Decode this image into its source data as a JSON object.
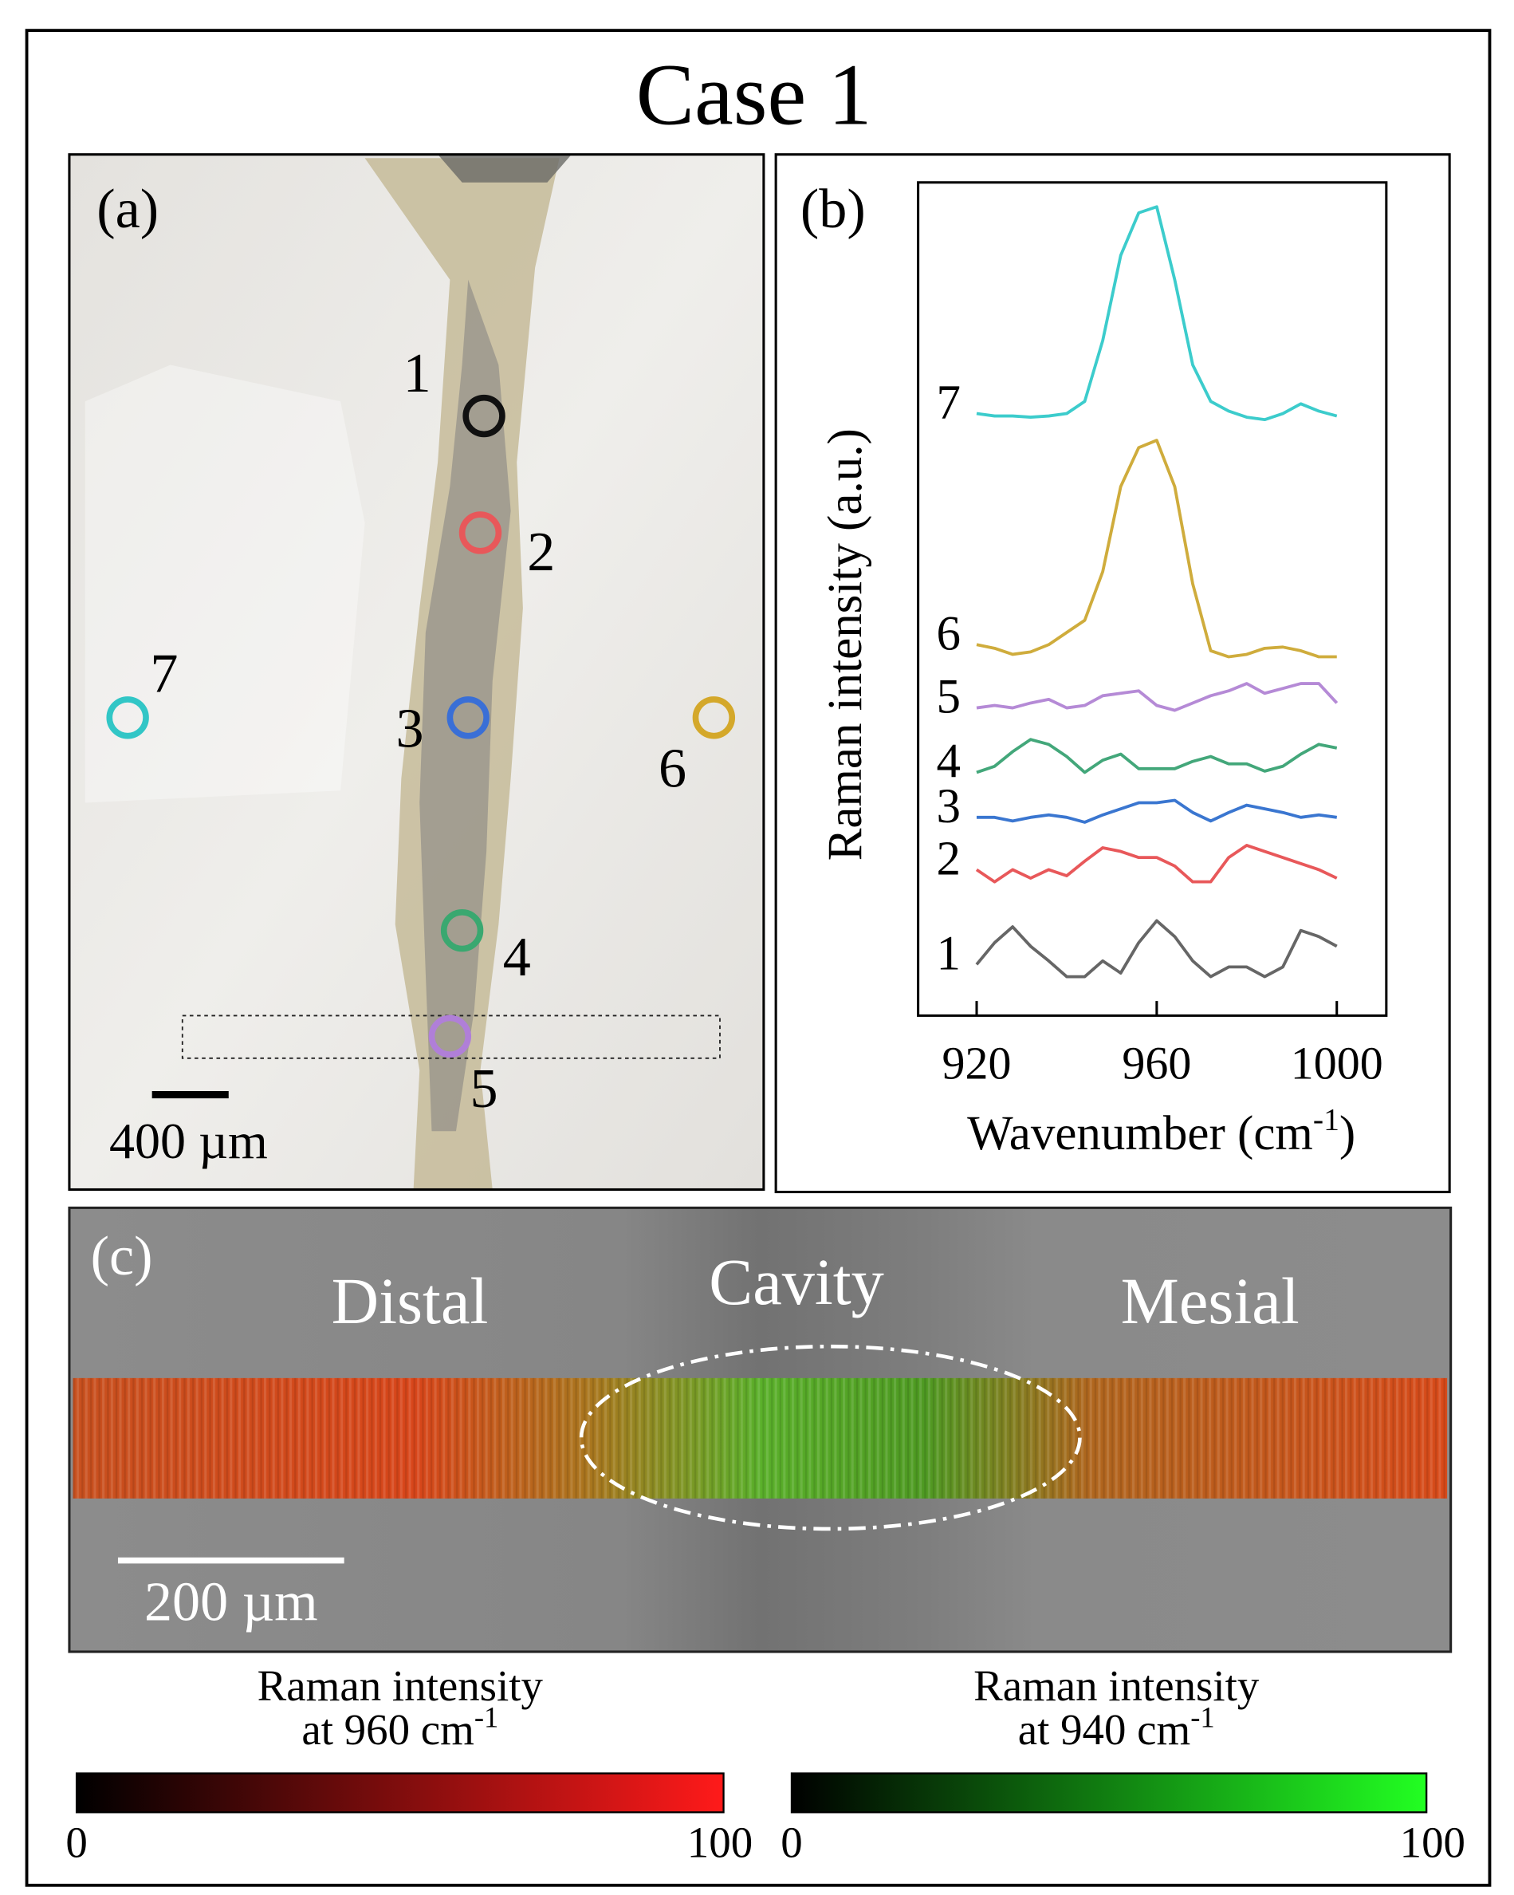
{
  "title": "Case 1",
  "panel_a": {
    "label": "(a)",
    "points": [
      {
        "label": "1",
        "color": "#111111"
      },
      {
        "label": "2",
        "color": "#e8585a"
      },
      {
        "label": "3",
        "color": "#3a6fd6"
      },
      {
        "label": "4",
        "color": "#3aa870"
      },
      {
        "label": "5",
        "color": "#b07fd8"
      },
      {
        "label": "6",
        "color": "#d4a82a"
      },
      {
        "label": "7",
        "color": "#32c6c6"
      }
    ],
    "scale_bar": "400 µm"
  },
  "chart_data": {
    "type": "line",
    "label": "(b)",
    "xlabel": {
      "text": "Wavenumber (cm",
      "sup": "-1",
      "end": ")"
    },
    "ylabel": "Raman intensity (a.u.)",
    "x": [
      920,
      924,
      928,
      932,
      936,
      940,
      944,
      948,
      952,
      956,
      960,
      964,
      968,
      972,
      976,
      980,
      984,
      988,
      992,
      996,
      1000
    ],
    "xlim": [
      907,
      1011
    ],
    "xticks": [
      920,
      960,
      1000
    ],
    "ylim": [
      0,
      685
    ],
    "series": [
      {
        "name": "1",
        "color": "#666666",
        "values": [
          42,
          60,
          73,
          57,
          45,
          32,
          32,
          45,
          35,
          60,
          78,
          65,
          45,
          32,
          40,
          40,
          32,
          40,
          70,
          65,
          57
        ]
      },
      {
        "name": "2",
        "color": "#e8585a",
        "values": [
          120,
          110,
          120,
          113,
          120,
          115,
          127,
          138,
          135,
          130,
          130,
          123,
          110,
          110,
          130,
          140,
          135,
          130,
          125,
          120,
          113
        ]
      },
      {
        "name": "3",
        "color": "#3a76d0",
        "values": [
          163,
          163,
          160,
          163,
          165,
          163,
          159,
          165,
          170,
          175,
          175,
          177,
          167,
          160,
          167,
          173,
          170,
          167,
          163,
          165,
          163
        ]
      },
      {
        "name": "4",
        "color": "#43a77a",
        "values": [
          200,
          205,
          217,
          227,
          223,
          213,
          200,
          210,
          215,
          203,
          203,
          203,
          209,
          213,
          207,
          207,
          201,
          205,
          215,
          223,
          220
        ]
      },
      {
        "name": "5",
        "color": "#b58ad6",
        "values": [
          253,
          255,
          253,
          257,
          260,
          253,
          255,
          263,
          265,
          267,
          255,
          251,
          257,
          263,
          267,
          273,
          265,
          269,
          273,
          273,
          257
        ]
      },
      {
        "name": "6",
        "color": "#cfac3c",
        "values": [
          305,
          302,
          297,
          299,
          305,
          315,
          325,
          365,
          435,
          467,
          473,
          435,
          355,
          300,
          295,
          297,
          302,
          303,
          300,
          295,
          295
        ]
      },
      {
        "name": "7",
        "color": "#3ccccc",
        "values": [
          495,
          493,
          493,
          492,
          493,
          495,
          505,
          555,
          625,
          660,
          665,
          605,
          535,
          505,
          497,
          492,
          490,
          495,
          503,
          497,
          493
        ]
      }
    ]
  },
  "panel_c": {
    "label": "(c)",
    "regions": [
      "Distal",
      "Cavity",
      "Mesial"
    ],
    "scale_bar": "200 µm"
  },
  "colorbars": [
    {
      "title": "Raman intensity",
      "subtitle": "at 960 cm",
      "sup": "-1",
      "min": 0,
      "max": 100,
      "color": "#ff1a1a"
    },
    {
      "title": "Raman intensity",
      "subtitle": "at 940 cm",
      "sup": "-1",
      "min": 0,
      "max": 100,
      "color": "#22ff22"
    }
  ]
}
